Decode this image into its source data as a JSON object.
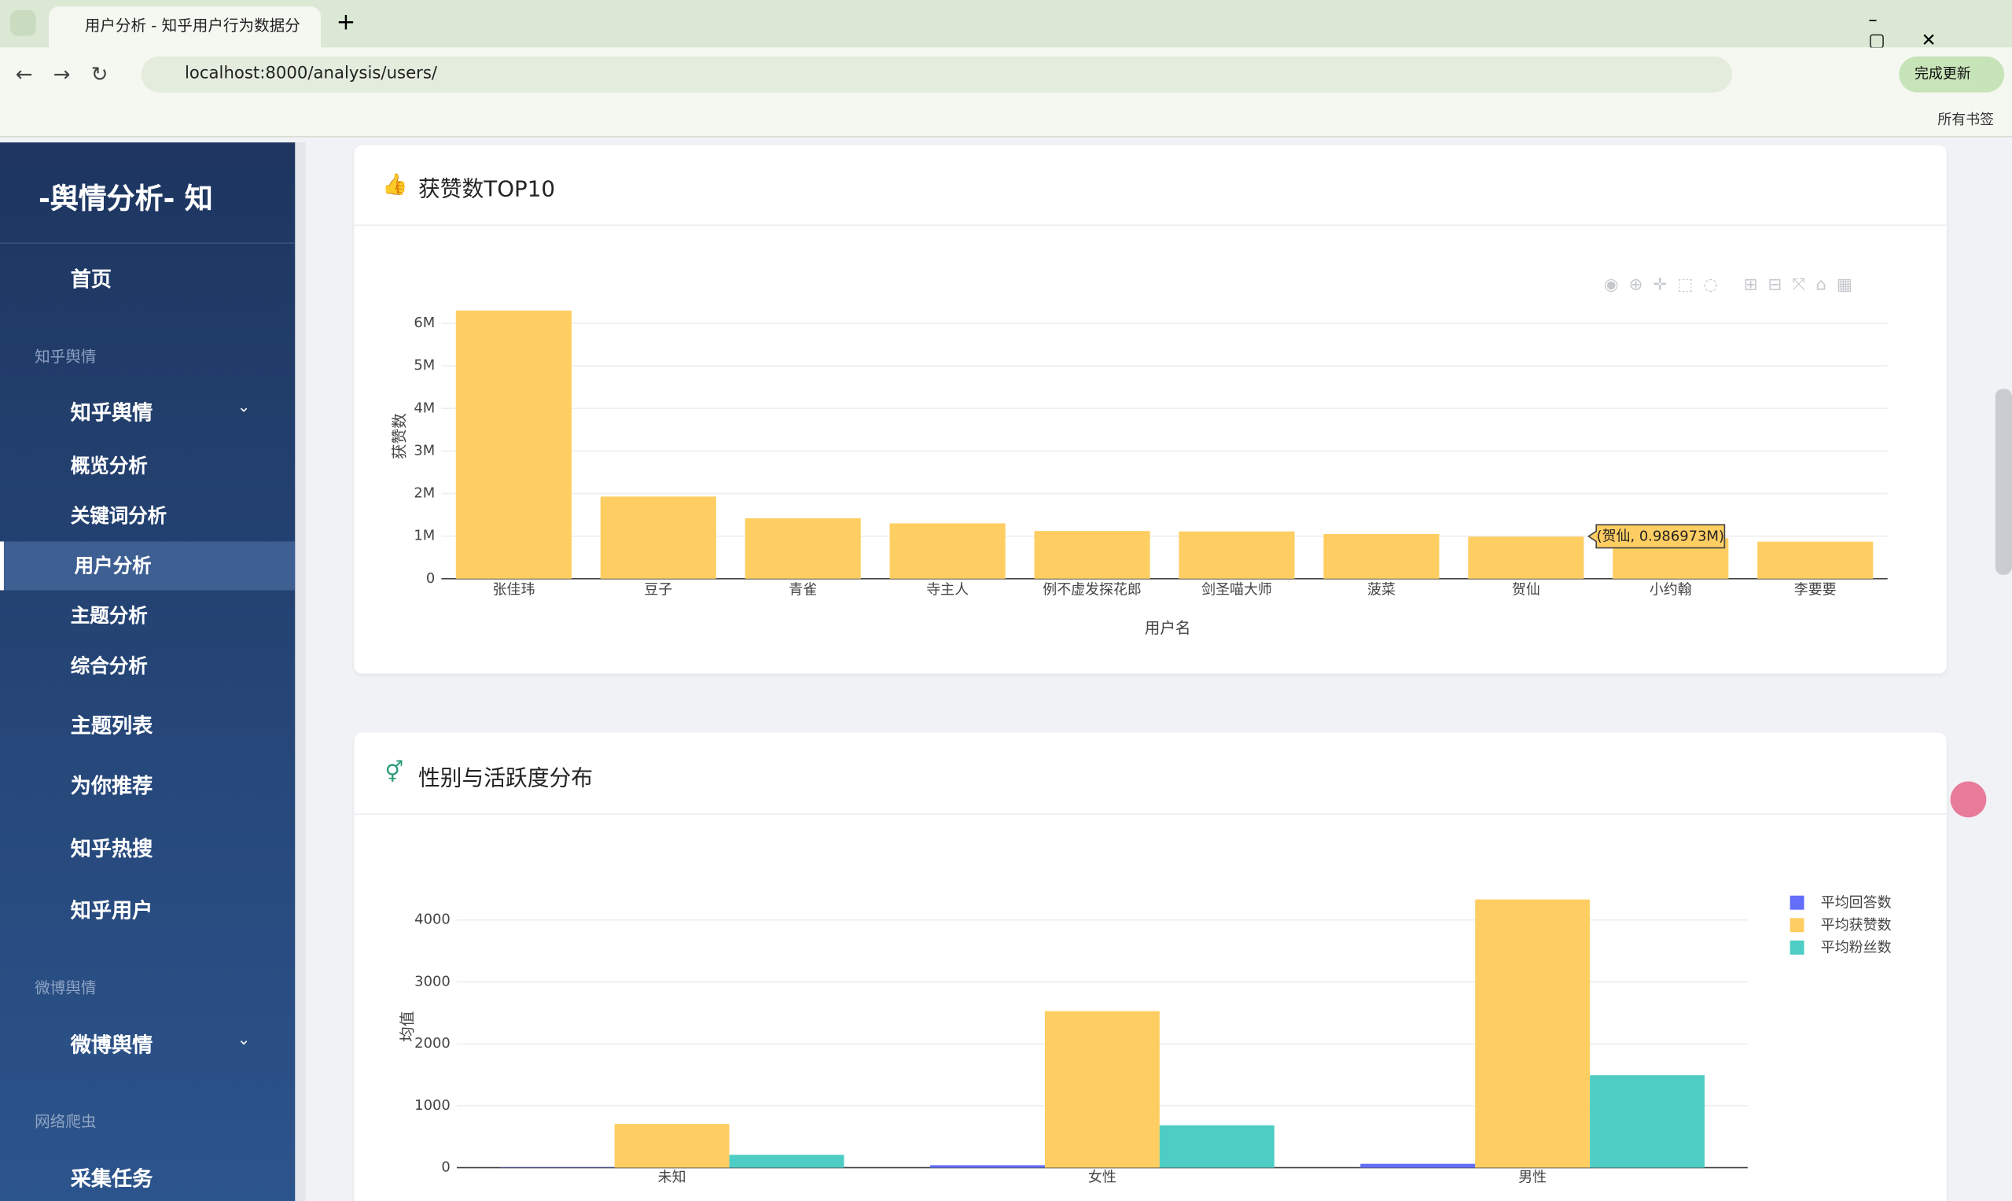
{
  "browser": {
    "tab_title": "用户分析 - 知乎用户行为数据分",
    "url": "localhost:8000/analysis/users/",
    "bookmarks": "所有书签",
    "update_button": "完成更新"
  },
  "sidebar": {
    "logo": "-舆情分析- 知",
    "home": "首页",
    "groups": [
      {
        "title": "知乎舆情",
        "menu": "知乎舆情",
        "submenu": [
          "概览分析",
          "关键词分析",
          "用户分析",
          "主题分析",
          "综合分析"
        ],
        "links": [
          "主题列表",
          "为你推荐",
          "知乎热搜",
          "知乎用户"
        ]
      },
      {
        "title": "微博舆情",
        "menu": "微博舆情"
      },
      {
        "title": "网络爬虫",
        "links": [
          "采集任务"
        ]
      }
    ]
  },
  "chart_data": [
    {
      "type": "bar",
      "title": "获赞数TOP10",
      "x_label": "用户名",
      "y_label": "获赞数",
      "color": "#ffce63",
      "categories": [
        "张佳玮",
        "豆子",
        "青雀",
        "寺主人",
        "例不虚发探花郎",
        "剑圣喵大师",
        "菠菜",
        "贺仙",
        "小约翰",
        "李要要"
      ],
      "values": [
        6300000,
        1930000,
        1420000,
        1300000,
        1120000,
        1110000,
        1050000,
        986973,
        950000,
        870000
      ],
      "ylim": [
        0,
        6600000
      ],
      "yticks": [
        0,
        {
          "value": 1000000,
          "label": "1M"
        },
        {
          "value": 2000000,
          "label": "2M"
        },
        {
          "value": 3000000,
          "label": "3M"
        },
        {
          "value": 4000000,
          "label": "4M"
        },
        {
          "value": 5000000,
          "label": "5M"
        },
        {
          "value": 6000000,
          "label": "6M"
        }
      ],
      "grid": true,
      "tooltip": "(贺仙, 0.986973M)"
    },
    {
      "type": "bar",
      "title": "性别与活跃度分布",
      "y_label": "均值",
      "categories": [
        "未知",
        "女性",
        "男性"
      ],
      "series": [
        {
          "name": "平均回答数",
          "color": "#636efa",
          "values": [
            5,
            40,
            62
          ]
        },
        {
          "name": "平均获赞数",
          "color": "#ffce63",
          "values": [
            705,
            2528,
            4332
          ]
        },
        {
          "name": "平均粉丝数",
          "color": "#4ecdc4",
          "values": [
            207,
            684,
            1492
          ]
        }
      ],
      "ylim": [
        0,
        4550
      ],
      "yticks": [
        0,
        1000,
        2000,
        3000,
        4000
      ],
      "grid": true,
      "legend": "top-right"
    }
  ]
}
